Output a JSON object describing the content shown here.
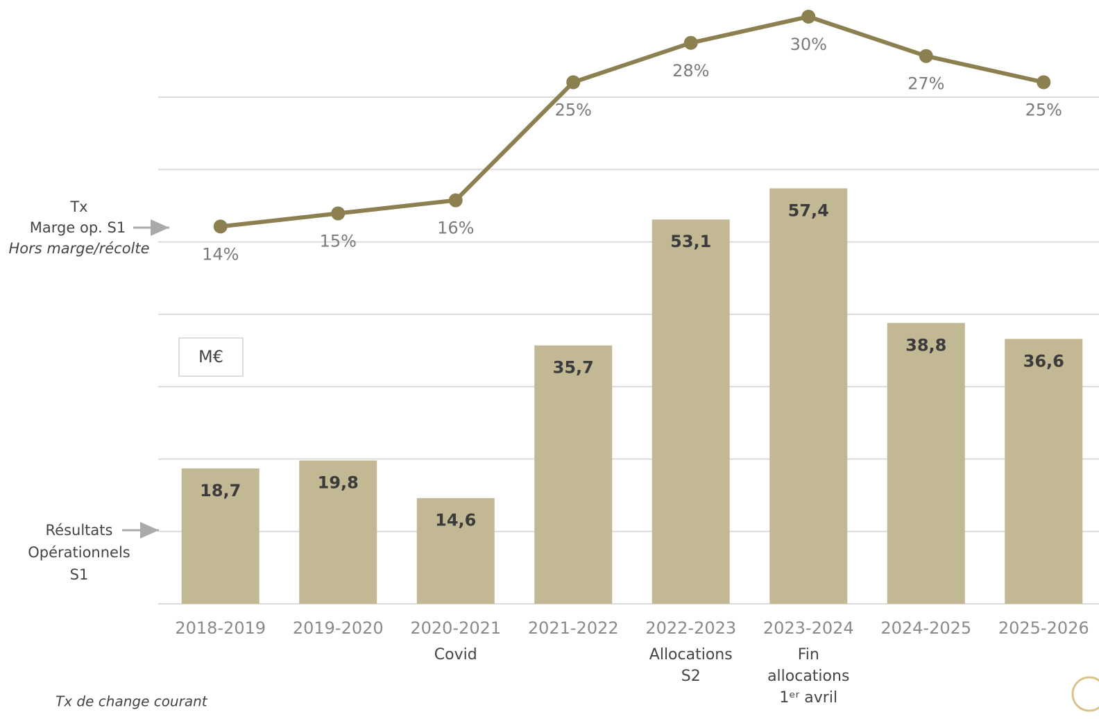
{
  "chart_data": {
    "type": "combo",
    "categories": [
      "2018-2019",
      "2019-2020",
      "2020-2021",
      "2021-2022",
      "2022-2023",
      "2023-2024",
      "2024-2025",
      "2025-2026"
    ],
    "category_notes": [
      null,
      null,
      [
        "Covid"
      ],
      null,
      [
        "Allocations",
        "S2"
      ],
      [
        "Fin",
        "allocations",
        "1ᵉʳ avril"
      ],
      null,
      null
    ],
    "unit_label": "M€",
    "footnote": "Tx de change courant",
    "ylim": [
      0,
      70
    ],
    "yticks": [
      0,
      10,
      20,
      30,
      40,
      50,
      60,
      70
    ],
    "y2lim": [
      10,
      30
    ],
    "grid": true,
    "series": [
      {
        "type": "bar",
        "label_lines": [
          "Résultats",
          "Opérationnels",
          "S1"
        ],
        "color": "#c2b994",
        "values": [
          18.7,
          19.8,
          14.6,
          35.7,
          53.1,
          57.4,
          38.8,
          36.6
        ],
        "value_labels": [
          "18,7",
          "19,8",
          "14,6",
          "35,7",
          "53,1",
          "57,4",
          "38,8",
          "36,6"
        ]
      },
      {
        "type": "line",
        "axis": "y2",
        "label_lines": [
          "Tx",
          "Marge op. S1",
          "Hors marge/récolte"
        ],
        "color": "#8c8050",
        "values": [
          14,
          15,
          16,
          25,
          28,
          30,
          27,
          25
        ],
        "value_labels": [
          "14%",
          "15%",
          "16%",
          "25%",
          "28%",
          "30%",
          "27%",
          "25%"
        ]
      }
    ]
  }
}
